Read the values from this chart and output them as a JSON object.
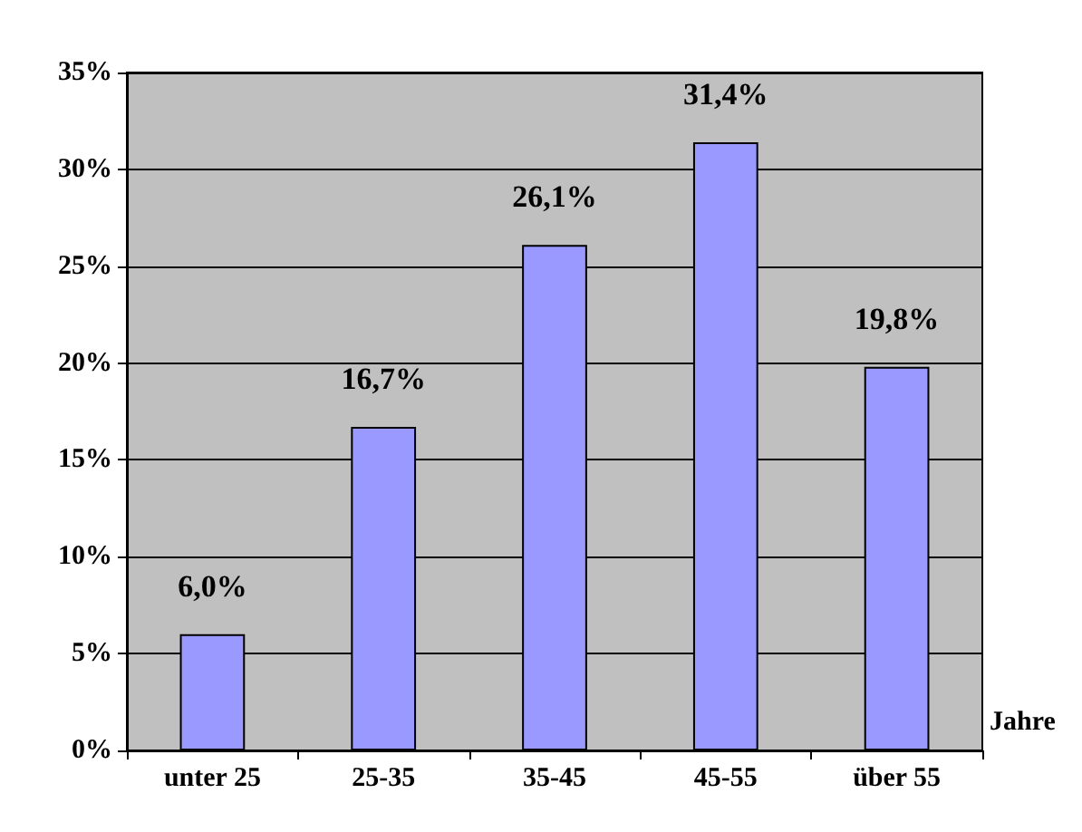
{
  "chart_data": {
    "type": "bar",
    "xlabel": "Jahre",
    "categories": [
      "unter 25",
      "25-35",
      "35-45",
      "45-55",
      "über 55"
    ],
    "values": [
      6.0,
      16.7,
      26.1,
      31.4,
      19.8
    ],
    "value_labels": [
      "6,0%",
      "16,7%",
      "26,1%",
      "31,4%",
      "19,8%"
    ],
    "color": "#9999ff",
    "ylim": [
      0,
      35
    ],
    "yticks": [
      {
        "value": 0,
        "label": "0%"
      },
      {
        "value": 5,
        "label": "5%"
      },
      {
        "value": 10,
        "label": "10%"
      },
      {
        "value": 15,
        "label": "15%"
      },
      {
        "value": 20,
        "label": "20%"
      },
      {
        "value": 25,
        "label": "25%"
      },
      {
        "value": 30,
        "label": "30%"
      },
      {
        "value": 35,
        "label": "35%"
      }
    ],
    "grid": "y"
  }
}
